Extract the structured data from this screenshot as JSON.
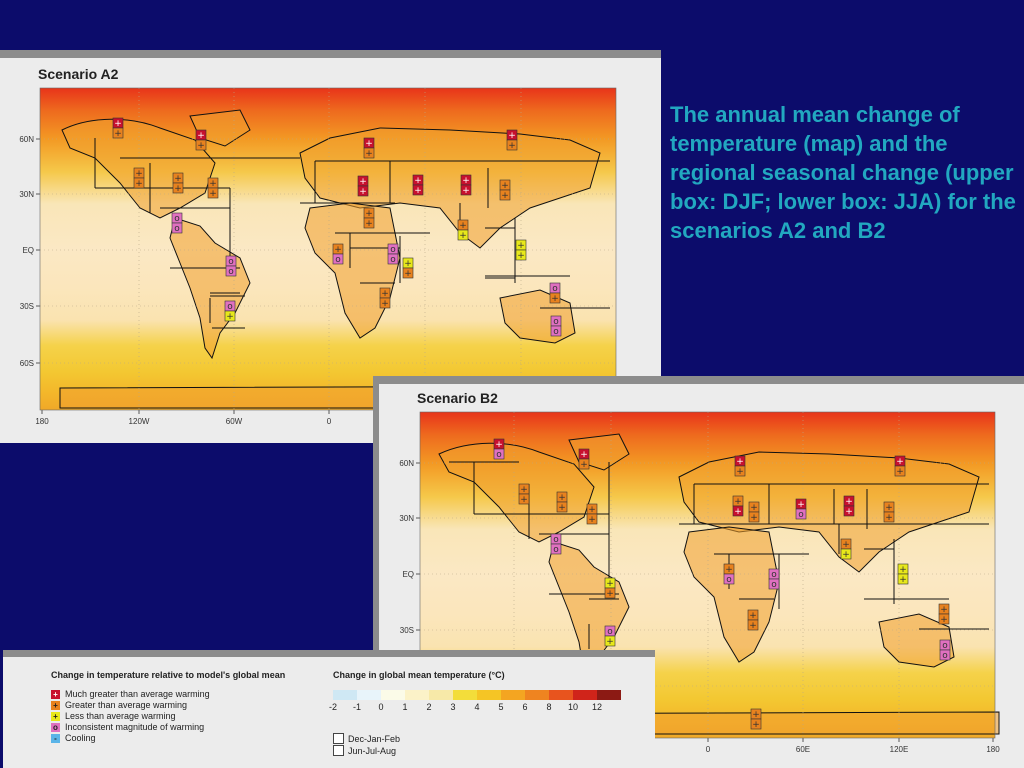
{
  "description": "The annual mean change of temperature (map) and the regional seasonal change (upper box: DJF; lower box: JJA) for the scenarios A2 and B2",
  "colors": {
    "background": "#0c0c6b",
    "text_accent": "#22a8c0",
    "much_greater": "#c8102e",
    "greater": "#e8821e",
    "less": "#e8e81a",
    "inconsistent": "#e070c0",
    "cooling": "#5ab4e8"
  },
  "map_a2": {
    "title": "Scenario A2",
    "lat_labels": [
      "60N",
      "30N",
      "EQ",
      "30S",
      "60S"
    ],
    "lon_labels": [
      "180",
      "120W",
      "60W",
      "0"
    ]
  },
  "map_b2": {
    "title": "Scenario B2",
    "lat_labels": [
      "60N",
      "30N",
      "EQ",
      "30S"
    ],
    "lon_labels": [
      "0",
      "60E",
      "120E",
      "180"
    ]
  },
  "legend": {
    "regional_title": "Change in temperature relative to model's global mean",
    "regional_items": [
      {
        "label": "Much greater than average warming",
        "symbol": "+"
      },
      {
        "label": "Greater than average warming",
        "symbol": "+"
      },
      {
        "label": "Less than average warming",
        "symbol": "+"
      },
      {
        "label": "Inconsistent magnitude of warming",
        "symbol": "o"
      },
      {
        "label": "Cooling",
        "symbol": "-"
      }
    ],
    "global_title": "Change in global mean temperature (°C)",
    "scale_labels": [
      "-2",
      "-1",
      "0",
      "1",
      "2",
      "3",
      "4",
      "5",
      "6",
      "8",
      "10",
      "12"
    ],
    "scale_colors": [
      "#cfe8f4",
      "#e8f4fa",
      "#fbfbe8",
      "#fbf2c8",
      "#f7e9a8",
      "#f3dd3a",
      "#f5c525",
      "#f4a521",
      "#ef8420",
      "#e8541e",
      "#d0241a",
      "#8c1a14"
    ],
    "seasons": [
      "Dec-Jan-Feb",
      "Jun-Jul-Aug"
    ]
  }
}
